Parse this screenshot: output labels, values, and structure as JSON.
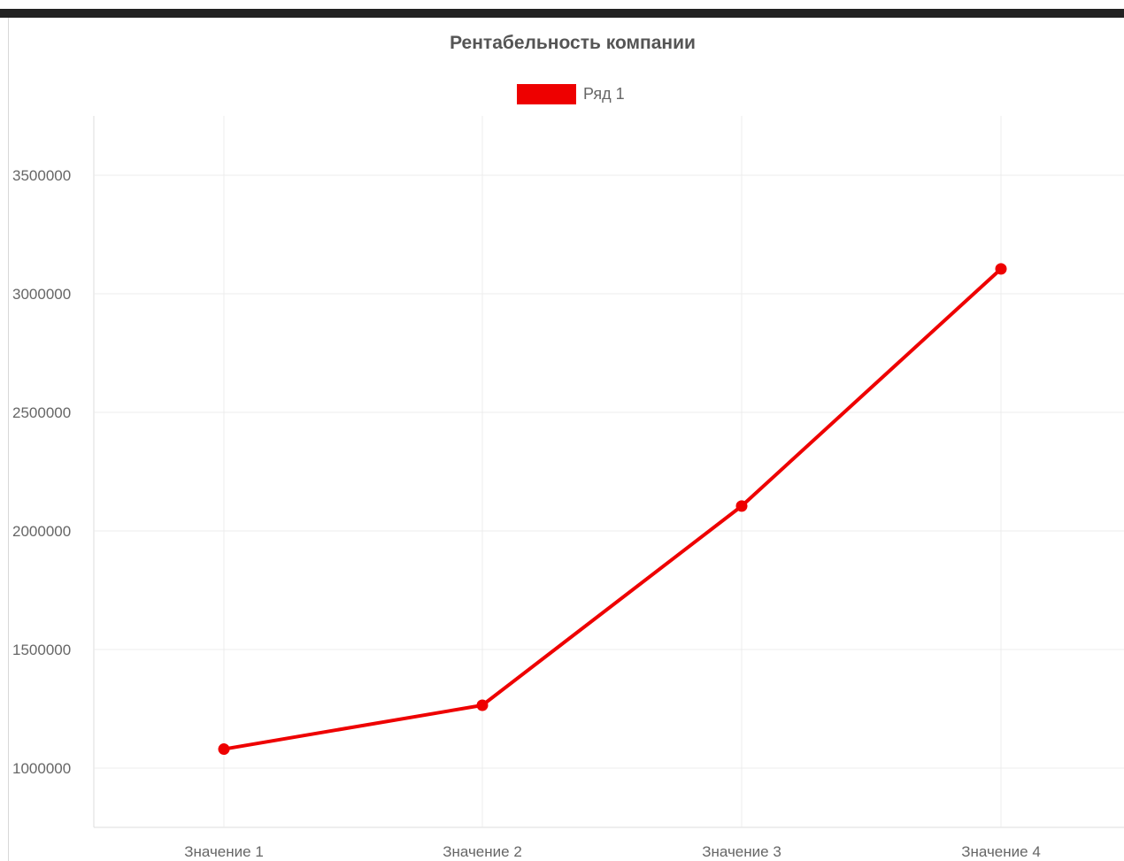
{
  "chart_data": {
    "type": "line",
    "title": "Рентабельность компании",
    "categories": [
      "Значение 1",
      "Значение 2",
      "Значение 3",
      "Значение 4"
    ],
    "series": [
      {
        "name": "Ряд 1",
        "values": [
          1080000,
          1265000,
          2105000,
          3105000
        ],
        "color": "#ee0000"
      }
    ],
    "y_ticks": [
      1000000,
      1500000,
      2000000,
      2500000,
      3000000,
      3500000
    ],
    "ylim": [
      750000,
      3750000
    ],
    "grid": true,
    "legend_position": "top-center"
  }
}
